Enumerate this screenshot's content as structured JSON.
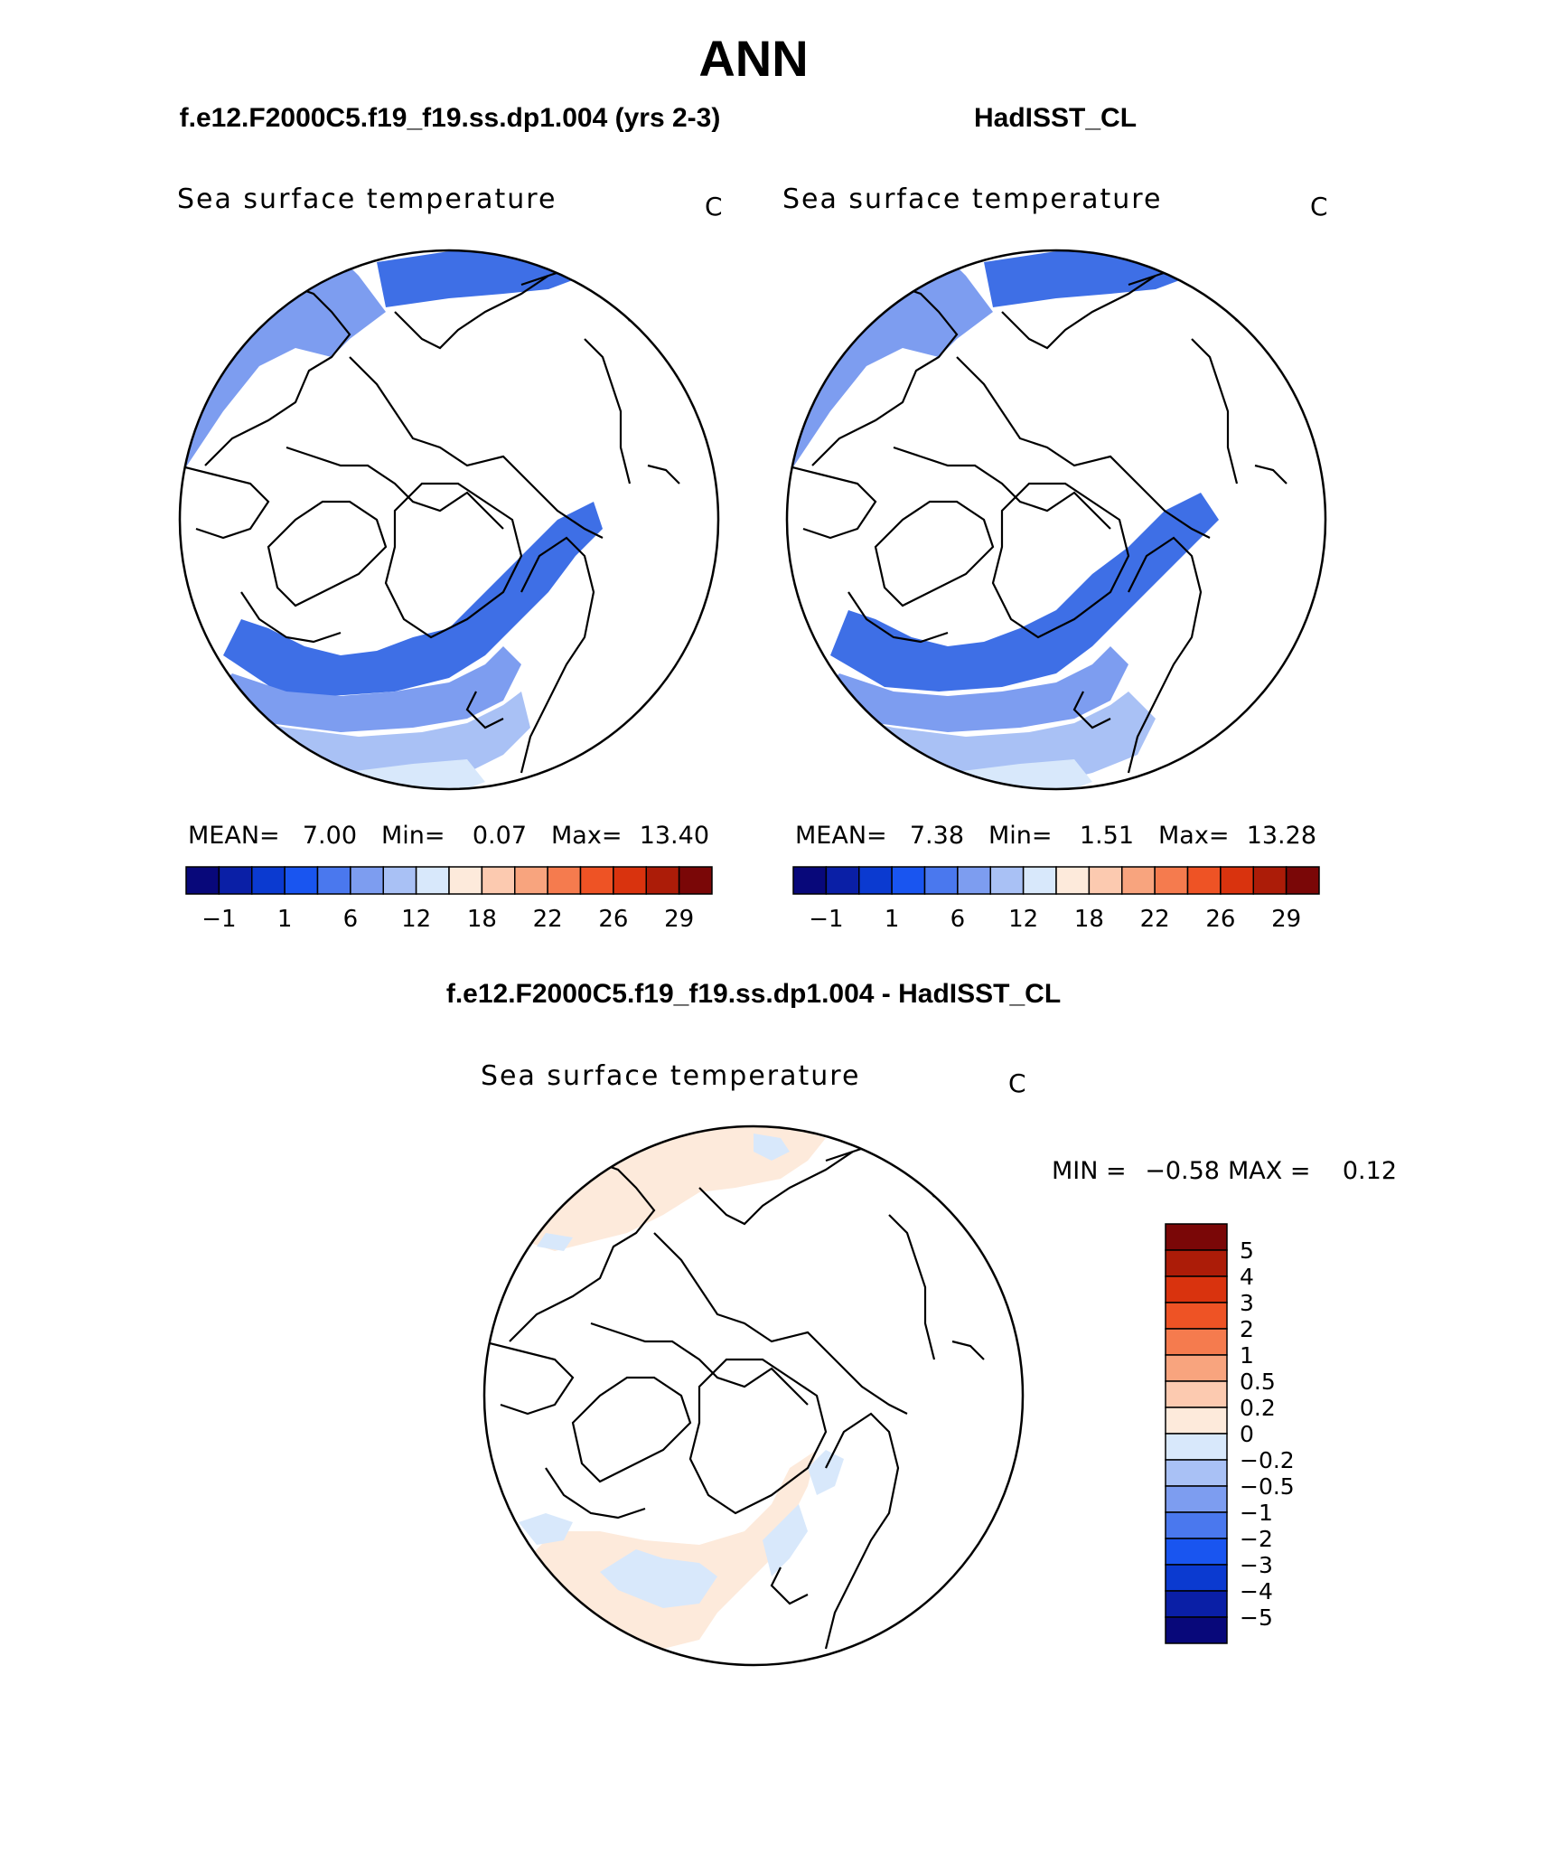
{
  "title": "ANN",
  "panels": [
    {
      "id": "model",
      "heading": "f.e12.F2000C5.f19_f19.ss.dp1.004 (yrs 2-3)",
      "variable": "Sea surface temperature",
      "units": "C",
      "stats": {
        "mean_label": "MEAN=",
        "mean": "7.00",
        "min_label": "Min=",
        "min": "0.07",
        "max_label": "Max=",
        "max": "13.40"
      }
    },
    {
      "id": "obs",
      "heading": "HadISST_CL",
      "variable": "Sea surface temperature",
      "units": "C",
      "stats": {
        "mean_label": "MEAN=",
        "mean": "7.38",
        "min_label": "Min=",
        "min": "1.51",
        "max_label": "Max=",
        "max": "13.28"
      }
    }
  ],
  "absolute_colorbar": {
    "colors": [
      "#08087a",
      "#0a1fa6",
      "#0b3ad0",
      "#1955f0",
      "#4a78ee",
      "#7d9df0",
      "#a9c1f5",
      "#d8e8fb",
      "#fdeadb",
      "#fccab0",
      "#f8a47e",
      "#f57b4e",
      "#ee5325",
      "#d9330e",
      "#ac1c08",
      "#7a0707"
    ],
    "tick_labels": [
      "-1",
      "1",
      "6",
      "12",
      "18",
      "22",
      "26",
      "29"
    ]
  },
  "difference_panel": {
    "heading": "f.e12.F2000C5.f19_f19.ss.dp1.004 - HadISST_CL",
    "variable": "Sea surface temperature",
    "units": "C",
    "minmax": {
      "min_label": "MIN =",
      "min": "-0.58",
      "max_label": "MAX =",
      "max": "0.12"
    }
  },
  "difference_colorbar": {
    "colors": [
      "#7a0707",
      "#ac1c08",
      "#d9330e",
      "#ee5325",
      "#f57b4e",
      "#f8a47e",
      "#fccab0",
      "#fdeadb",
      "#d8e8fb",
      "#a9c1f5",
      "#7d9df0",
      "#4a78ee",
      "#1955f0",
      "#0b3ad0",
      "#0a1fa6",
      "#08087a"
    ],
    "tick_labels": [
      "5",
      "4",
      "3",
      "2",
      "1",
      "0.5",
      "0.2",
      "0",
      "-0.2",
      "-0.5",
      "-1",
      "-2",
      "-3",
      "-4",
      "-5"
    ]
  },
  "map_fill_colors": {
    "deep_blue": "#3e6fe6",
    "mid_blue": "#7d9df0",
    "light_blue": "#a9c1f5",
    "pale_blue": "#d8e8fb",
    "pale_orange": "#fdeadb"
  }
}
